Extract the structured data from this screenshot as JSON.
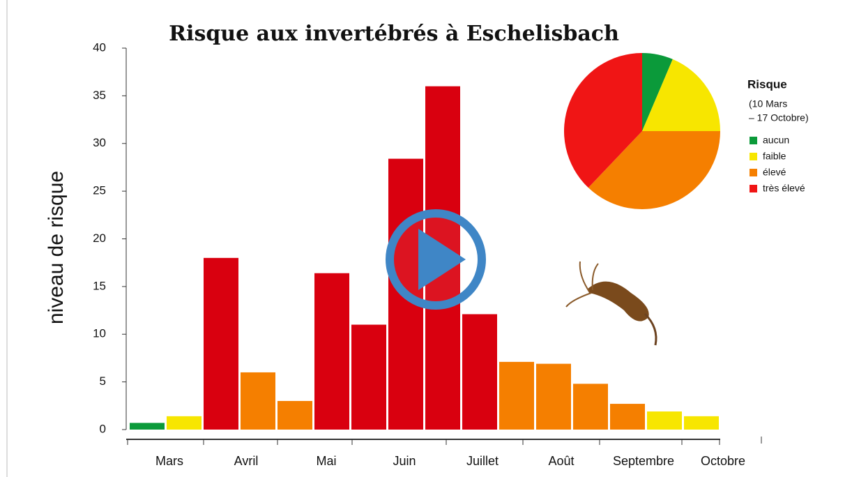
{
  "chart_data": {
    "type": "bar",
    "title": "Risque aux invertébrés à Eschelisbach",
    "y_label": "niveau de risque",
    "months": [
      "Mars",
      "Avril",
      "Mai",
      "Juin",
      "Juillet",
      "Août",
      "Septembre",
      "Octobre"
    ],
    "categories": [
      null,
      null,
      null,
      null,
      null,
      null,
      null,
      null,
      null,
      null,
      null,
      null,
      null,
      null,
      null,
      null
    ],
    "values": [
      0.7,
      1.4,
      18,
      6,
      3,
      16.4,
      11,
      28.4,
      36,
      12.1,
      7.1,
      6.9,
      4.8,
      2.7,
      1.9,
      1.4
    ],
    "colors": [
      "#0b9a3a",
      "#f7e600",
      "#d9000f",
      "#f57f00",
      "#f57f00",
      "#d9000f",
      "#d9000f",
      "#d9000f",
      "#d9000f",
      "#d9000f",
      "#f57f00",
      "#f57f00",
      "#f57f00",
      "#f57f00",
      "#f7e600",
      "#f7e600"
    ],
    "ylim": [
      0,
      40
    ],
    "yticks": [
      0,
      5,
      10,
      15,
      20,
      25,
      30,
      35,
      40
    ],
    "pie": {
      "type": "pie",
      "title": "Risque",
      "subtitle": [
        "(10 Mars",
        "– 17 Octobre)"
      ],
      "categories": [
        "aucun",
        "faible",
        "élevé",
        "très élevé"
      ],
      "values": [
        6.4,
        18.6,
        37.1,
        37.9
      ],
      "colors": [
        "#0b9a3a",
        "#f7e600",
        "#f57f00",
        "#f01515"
      ]
    }
  }
}
